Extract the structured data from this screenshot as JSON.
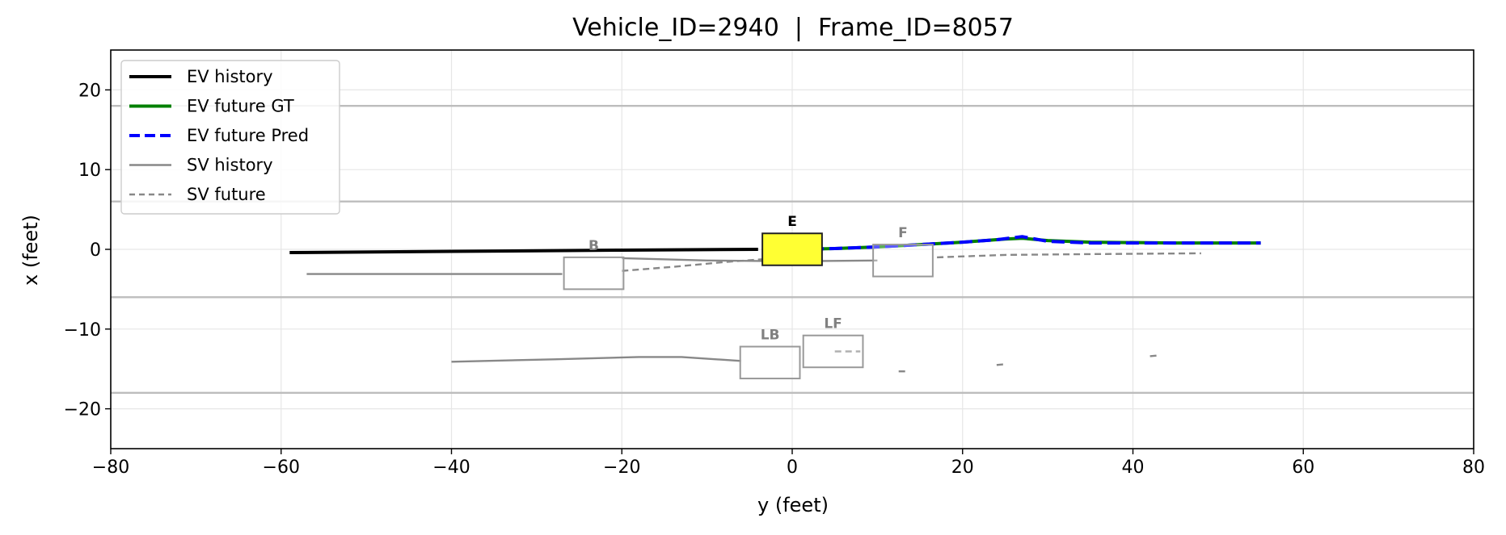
{
  "chart_data": {
    "type": "line",
    "title": "Vehicle_ID=2940  |  Frame_ID=8057",
    "xlabel": "y (feet)",
    "ylabel": "x (feet)",
    "xlim": [
      -80,
      80
    ],
    "ylim": [
      -25,
      25
    ],
    "xticks": [
      -80,
      -60,
      -40,
      -20,
      0,
      20,
      40,
      60,
      80
    ],
    "yticks": [
      -20,
      -10,
      0,
      10,
      20
    ],
    "xtick_labels": [
      "−80",
      "−60",
      "−40",
      "−20",
      "0",
      "20",
      "40",
      "60",
      "80"
    ],
    "ytick_labels": [
      "−20",
      "−10",
      "0",
      "10",
      "20"
    ],
    "grid": true,
    "legend_position": "top-left",
    "lane_lines": [
      18,
      6,
      -6,
      -18
    ],
    "legend": [
      {
        "label": "EV history",
        "color": "#000000",
        "style": "solid",
        "width": 4
      },
      {
        "label": "EV future GT",
        "color": "#008000",
        "style": "solid",
        "width": 4
      },
      {
        "label": "EV future Pred",
        "color": "#0000ff",
        "style": "dashed",
        "width": 4
      },
      {
        "label": "SV history",
        "color": "#888888",
        "style": "solid",
        "width": 2.4
      },
      {
        "label": "SV future",
        "color": "#888888",
        "style": "dashed",
        "width": 2.4
      }
    ],
    "series": [
      {
        "name": "EV history",
        "color": "#000000",
        "style": "solid",
        "width": 4,
        "points": [
          [
            -59,
            -0.4
          ],
          [
            -40,
            -0.25
          ],
          [
            -20,
            -0.1
          ],
          [
            -4,
            0
          ]
        ]
      },
      {
        "name": "EV future GT",
        "color": "#008000",
        "style": "solid",
        "width": 4,
        "points": [
          [
            0,
            0
          ],
          [
            5,
            0.1
          ],
          [
            10,
            0.3
          ],
          [
            15,
            0.6
          ],
          [
            20,
            0.9
          ],
          [
            25,
            1.3
          ],
          [
            27,
            1.4
          ],
          [
            30,
            1.1
          ],
          [
            35,
            0.9
          ],
          [
            45,
            0.8
          ],
          [
            55,
            0.8
          ]
        ]
      },
      {
        "name": "EV future Pred",
        "color": "#0000ff",
        "style": "dashed",
        "width": 4,
        "points": [
          [
            0,
            0
          ],
          [
            5,
            0.1
          ],
          [
            10,
            0.3
          ],
          [
            15,
            0.6
          ],
          [
            20,
            0.9
          ],
          [
            24,
            1.2
          ],
          [
            27,
            1.6
          ],
          [
            30,
            1.0
          ],
          [
            35,
            0.8
          ],
          [
            45,
            0.8
          ],
          [
            55,
            0.8
          ]
        ]
      }
    ],
    "sv_tracks": [
      {
        "history": [
          [
            -57,
            -3.1
          ],
          [
            -27,
            -3.1
          ]
        ],
        "future": [
          [
            -20,
            -2.7
          ],
          [
            -14,
            -2.2
          ],
          [
            -8,
            -1.6
          ],
          [
            -3,
            -1.2
          ]
        ]
      },
      {
        "history": [
          [
            -20,
            -1.1
          ],
          [
            -10,
            -1.4
          ],
          [
            0,
            -1.5
          ],
          [
            10,
            -1.4
          ]
        ],
        "future": [
          [
            17,
            -1.0
          ],
          [
            25,
            -0.7
          ],
          [
            35,
            -0.6
          ],
          [
            48,
            -0.5
          ]
        ]
      },
      {
        "history": [
          [
            -40,
            -14.1
          ],
          [
            -28,
            -13.8
          ],
          [
            -18,
            -13.5
          ],
          [
            -13,
            -13.5
          ],
          [
            -6,
            -14.0
          ]
        ],
        "future": []
      },
      {
        "history": [],
        "future": [
          [
            5,
            -12.8
          ],
          [
            8,
            -12.8
          ]
        ]
      },
      {
        "history": [],
        "future": [
          [
            12.5,
            -15.3
          ],
          [
            13.5,
            -15.3
          ]
        ]
      },
      {
        "history": [],
        "future": [
          [
            24,
            -14.5
          ],
          [
            25,
            -14.4
          ]
        ]
      },
      {
        "history": [],
        "future": [
          [
            42,
            -13.4
          ],
          [
            43,
            -13.3
          ]
        ]
      }
    ],
    "vehicles": [
      {
        "label": "E",
        "center": [
          0,
          0
        ],
        "length": 7,
        "width": 4,
        "fill": "#ffff33",
        "edge": "#222222",
        "label_color": "#000000"
      },
      {
        "label": "B",
        "center": [
          -23.3,
          -3.0
        ],
        "length": 7,
        "width": 4,
        "fill": "none",
        "edge": "#999999",
        "label_color": "#808080"
      },
      {
        "label": "F",
        "center": [
          13,
          -1.4
        ],
        "length": 7,
        "width": 4,
        "fill": "none",
        "edge": "#999999",
        "label_color": "#808080"
      },
      {
        "label": "LB",
        "center": [
          -2.6,
          -14.2
        ],
        "length": 7,
        "width": 4,
        "fill": "none",
        "edge": "#999999",
        "label_color": "#808080"
      },
      {
        "label": "LF",
        "center": [
          4.8,
          -12.8
        ],
        "length": 7,
        "width": 4,
        "fill": "none",
        "edge": "#999999",
        "label_color": "#808080"
      }
    ]
  }
}
